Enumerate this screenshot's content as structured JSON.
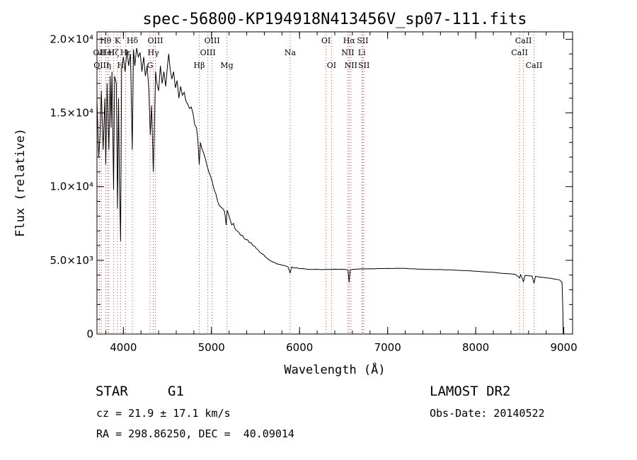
{
  "chart_data": {
    "type": "line",
    "title": "spec-56800-KP194918N413456V_sp07-111.fits",
    "xlabel": "Wavelength (Å)",
    "ylabel": "Flux (relative)",
    "xlim": [
      3700,
      9100
    ],
    "ylim": [
      0,
      20500
    ],
    "x_ticks": [
      {
        "value": 4000,
        "label": "4000"
      },
      {
        "value": 5000,
        "label": "5000"
      },
      {
        "value": 6000,
        "label": "6000"
      },
      {
        "value": 7000,
        "label": "7000"
      },
      {
        "value": 8000,
        "label": "8000"
      },
      {
        "value": 9000,
        "label": "9000"
      }
    ],
    "y_ticks": [
      {
        "value": 0,
        "label": "0"
      },
      {
        "value": 5000,
        "label": "5.0×10³"
      },
      {
        "value": 10000,
        "label": "1.0×10⁴"
      },
      {
        "value": 15000,
        "label": "1.5×10⁴"
      },
      {
        "value": 20000,
        "label": "2.0×10⁴"
      }
    ],
    "series": [
      {
        "name": "spectrum",
        "points": [
          [
            3700,
            15800
          ],
          [
            3720,
            12000
          ],
          [
            3735,
            13500
          ],
          [
            3750,
            16500
          ],
          [
            3770,
            12500
          ],
          [
            3790,
            16000
          ],
          [
            3800,
            11500
          ],
          [
            3815,
            17000
          ],
          [
            3835,
            12500
          ],
          [
            3850,
            17500
          ],
          [
            3860,
            14000
          ],
          [
            3870,
            17800
          ],
          [
            3889,
            9800
          ],
          [
            3900,
            17500
          ],
          [
            3920,
            17000
          ],
          [
            3933,
            8500
          ],
          [
            3945,
            16000
          ],
          [
            3955,
            10500
          ],
          [
            3968,
            6300
          ],
          [
            3980,
            18000
          ],
          [
            4000,
            18800
          ],
          [
            4020,
            17800
          ],
          [
            4040,
            19300
          ],
          [
            4060,
            18200
          ],
          [
            4080,
            19000
          ],
          [
            4101,
            12500
          ],
          [
            4115,
            19300
          ],
          [
            4130,
            18200
          ],
          [
            4150,
            19400
          ],
          [
            4170,
            18800
          ],
          [
            4190,
            19100
          ],
          [
            4210,
            17800
          ],
          [
            4230,
            18800
          ],
          [
            4250,
            17500
          ],
          [
            4270,
            18200
          ],
          [
            4290,
            16500
          ],
          [
            4305,
            13500
          ],
          [
            4320,
            15500
          ],
          [
            4340,
            11000
          ],
          [
            4350,
            13500
          ],
          [
            4365,
            17800
          ],
          [
            4380,
            17000
          ],
          [
            4400,
            16500
          ],
          [
            4420,
            18200
          ],
          [
            4440,
            17000
          ],
          [
            4460,
            17800
          ],
          [
            4480,
            16800
          ],
          [
            4500,
            18200
          ],
          [
            4515,
            19000
          ],
          [
            4530,
            18000
          ],
          [
            4550,
            17300
          ],
          [
            4570,
            17800
          ],
          [
            4590,
            16700
          ],
          [
            4610,
            17200
          ],
          [
            4630,
            16000
          ],
          [
            4650,
            16800
          ],
          [
            4670,
            16200
          ],
          [
            4690,
            16400
          ],
          [
            4710,
            15800
          ],
          [
            4730,
            15600
          ],
          [
            4750,
            15300
          ],
          [
            4770,
            15400
          ],
          [
            4790,
            15000
          ],
          [
            4810,
            14200
          ],
          [
            4830,
            14000
          ],
          [
            4845,
            13200
          ],
          [
            4861,
            11500
          ],
          [
            4875,
            13000
          ],
          [
            4890,
            12600
          ],
          [
            4910,
            12300
          ],
          [
            4930,
            11900
          ],
          [
            4950,
            11400
          ],
          [
            4970,
            11000
          ],
          [
            4990,
            10700
          ],
          [
            5010,
            10300
          ],
          [
            5030,
            9800
          ],
          [
            5050,
            9500
          ],
          [
            5070,
            9000
          ],
          [
            5090,
            8700
          ],
          [
            5110,
            8600
          ],
          [
            5130,
            8500
          ],
          [
            5150,
            8300
          ],
          [
            5167,
            7400
          ],
          [
            5178,
            8400
          ],
          [
            5190,
            8200
          ],
          [
            5210,
            7800
          ],
          [
            5230,
            7400
          ],
          [
            5250,
            7500
          ],
          [
            5270,
            7100
          ],
          [
            5290,
            7000
          ],
          [
            5310,
            6900
          ],
          [
            5330,
            6700
          ],
          [
            5350,
            6700
          ],
          [
            5370,
            6500
          ],
          [
            5390,
            6400
          ],
          [
            5410,
            6400
          ],
          [
            5430,
            6200
          ],
          [
            5450,
            6200
          ],
          [
            5470,
            6000
          ],
          [
            5490,
            5950
          ],
          [
            5510,
            5800
          ],
          [
            5530,
            5700
          ],
          [
            5550,
            5550
          ],
          [
            5570,
            5450
          ],
          [
            5590,
            5400
          ],
          [
            5610,
            5250
          ],
          [
            5630,
            5150
          ],
          [
            5650,
            5050
          ],
          [
            5670,
            4980
          ],
          [
            5690,
            4900
          ],
          [
            5710,
            4870
          ],
          [
            5730,
            4800
          ],
          [
            5750,
            4750
          ],
          [
            5770,
            4730
          ],
          [
            5790,
            4700
          ],
          [
            5810,
            4650
          ],
          [
            5830,
            4650
          ],
          [
            5850,
            4600
          ],
          [
            5870,
            4550
          ],
          [
            5893,
            4150
          ],
          [
            5910,
            4550
          ],
          [
            5940,
            4480
          ],
          [
            5970,
            4500
          ],
          [
            6000,
            4430
          ],
          [
            6040,
            4440
          ],
          [
            6080,
            4400
          ],
          [
            6120,
            4380
          ],
          [
            6160,
            4380
          ],
          [
            6200,
            4400
          ],
          [
            6240,
            4370
          ],
          [
            6280,
            4380
          ],
          [
            6320,
            4380
          ],
          [
            6360,
            4390
          ],
          [
            6400,
            4400
          ],
          [
            6440,
            4390
          ],
          [
            6480,
            4400
          ],
          [
            6520,
            4380
          ],
          [
            6550,
            4350
          ],
          [
            6563,
            3500
          ],
          [
            6575,
            4350
          ],
          [
            6600,
            4380
          ],
          [
            6650,
            4400
          ],
          [
            6700,
            4420
          ],
          [
            6750,
            4420
          ],
          [
            6800,
            4430
          ],
          [
            6850,
            4420
          ],
          [
            6900,
            4440
          ],
          [
            6950,
            4440
          ],
          [
            7000,
            4450
          ],
          [
            7050,
            4440
          ],
          [
            7100,
            4460
          ],
          [
            7150,
            4450
          ],
          [
            7200,
            4450
          ],
          [
            7250,
            4430
          ],
          [
            7300,
            4420
          ],
          [
            7350,
            4400
          ],
          [
            7400,
            4400
          ],
          [
            7450,
            4380
          ],
          [
            7500,
            4380
          ],
          [
            7550,
            4370
          ],
          [
            7600,
            4380
          ],
          [
            7650,
            4350
          ],
          [
            7700,
            4360
          ],
          [
            7750,
            4340
          ],
          [
            7800,
            4320
          ],
          [
            7850,
            4310
          ],
          [
            7900,
            4300
          ],
          [
            7950,
            4280
          ],
          [
            8000,
            4260
          ],
          [
            8050,
            4240
          ],
          [
            8100,
            4220
          ],
          [
            8150,
            4200
          ],
          [
            8200,
            4190
          ],
          [
            8250,
            4150
          ],
          [
            8300,
            4120
          ],
          [
            8350,
            4100
          ],
          [
            8400,
            4080
          ],
          [
            8450,
            4050
          ],
          [
            8498,
            3800
          ],
          [
            8510,
            4030
          ],
          [
            8542,
            3550
          ],
          [
            8560,
            3980
          ],
          [
            8600,
            3950
          ],
          [
            8640,
            3930
          ],
          [
            8662,
            3450
          ],
          [
            8680,
            3920
          ],
          [
            8720,
            3870
          ],
          [
            8760,
            3840
          ],
          [
            8800,
            3810
          ],
          [
            8850,
            3780
          ],
          [
            8900,
            3720
          ],
          [
            8950,
            3680
          ],
          [
            8980,
            3500
          ],
          [
            8990,
            1500
          ],
          [
            8993,
            0
          ]
        ]
      }
    ],
    "lines": [
      {
        "wavelength": 3727,
        "label": "OII",
        "row": 1
      },
      {
        "wavelength": 3750,
        "label": "OIII",
        "row": 2
      },
      {
        "wavelength": 3798,
        "label": "Hθ",
        "row": 0
      },
      {
        "wavelength": 3820,
        "label": "HeI",
        "row": 1
      },
      {
        "wavelength": 3835,
        "label": "η",
        "row": 2
      },
      {
        "wavelength": 3889,
        "label": "Hζ",
        "row": 1
      },
      {
        "wavelength": 3933,
        "label": "K",
        "row": 0
      },
      {
        "wavelength": 3968,
        "label": "H",
        "row": 2
      },
      {
        "wavelength": 4026,
        "label": "Hε",
        "row": 1
      },
      {
        "wavelength": 4102,
        "label": "Hδ",
        "row": 0
      },
      {
        "wavelength": 4303,
        "label": "G",
        "row": 2
      },
      {
        "wavelength": 4340,
        "label": "Hγ",
        "row": 1
      },
      {
        "wavelength": 4363,
        "label": "OIII",
        "row": 0
      },
      {
        "wavelength": 4861,
        "label": "Hβ",
        "row": 2
      },
      {
        "wavelength": 4959,
        "label": "OIII",
        "row": 1
      },
      {
        "wavelength": 5007,
        "label": "OIII",
        "row": 0
      },
      {
        "wavelength": 5175,
        "label": "Mg",
        "row": 2
      },
      {
        "wavelength": 5893,
        "label": "Na",
        "row": 1
      },
      {
        "wavelength": 6300,
        "label": "OI",
        "row": 0
      },
      {
        "wavelength": 6363,
        "label": "OI",
        "row": 2
      },
      {
        "wavelength": 6548,
        "label": "NII",
        "row": 1
      },
      {
        "wavelength": 6563,
        "label": "Hα",
        "row": 0
      },
      {
        "wavelength": 6583,
        "label": "NII",
        "row": 2
      },
      {
        "wavelength": 6707,
        "label": "Li",
        "row": 1
      },
      {
        "wavelength": 6716,
        "label": "SII",
        "row": 0
      },
      {
        "wavelength": 6731,
        "label": "SII",
        "row": 2
      },
      {
        "wavelength": 8498,
        "label": "CaII",
        "row": 1
      },
      {
        "wavelength": 8542,
        "label": "CaII",
        "row": 0
      },
      {
        "wavelength": 8662,
        "label": "CaII",
        "row": 2
      }
    ]
  },
  "info": {
    "class": "STAR",
    "subclass": "G1",
    "cz": "cz = 21.9 ± 17.1 km/s",
    "coords": "RA = 298.86250, DEC =  40.09014",
    "survey": "LAMOST DR2",
    "obs_date": "Obs-Date: 20140522"
  }
}
